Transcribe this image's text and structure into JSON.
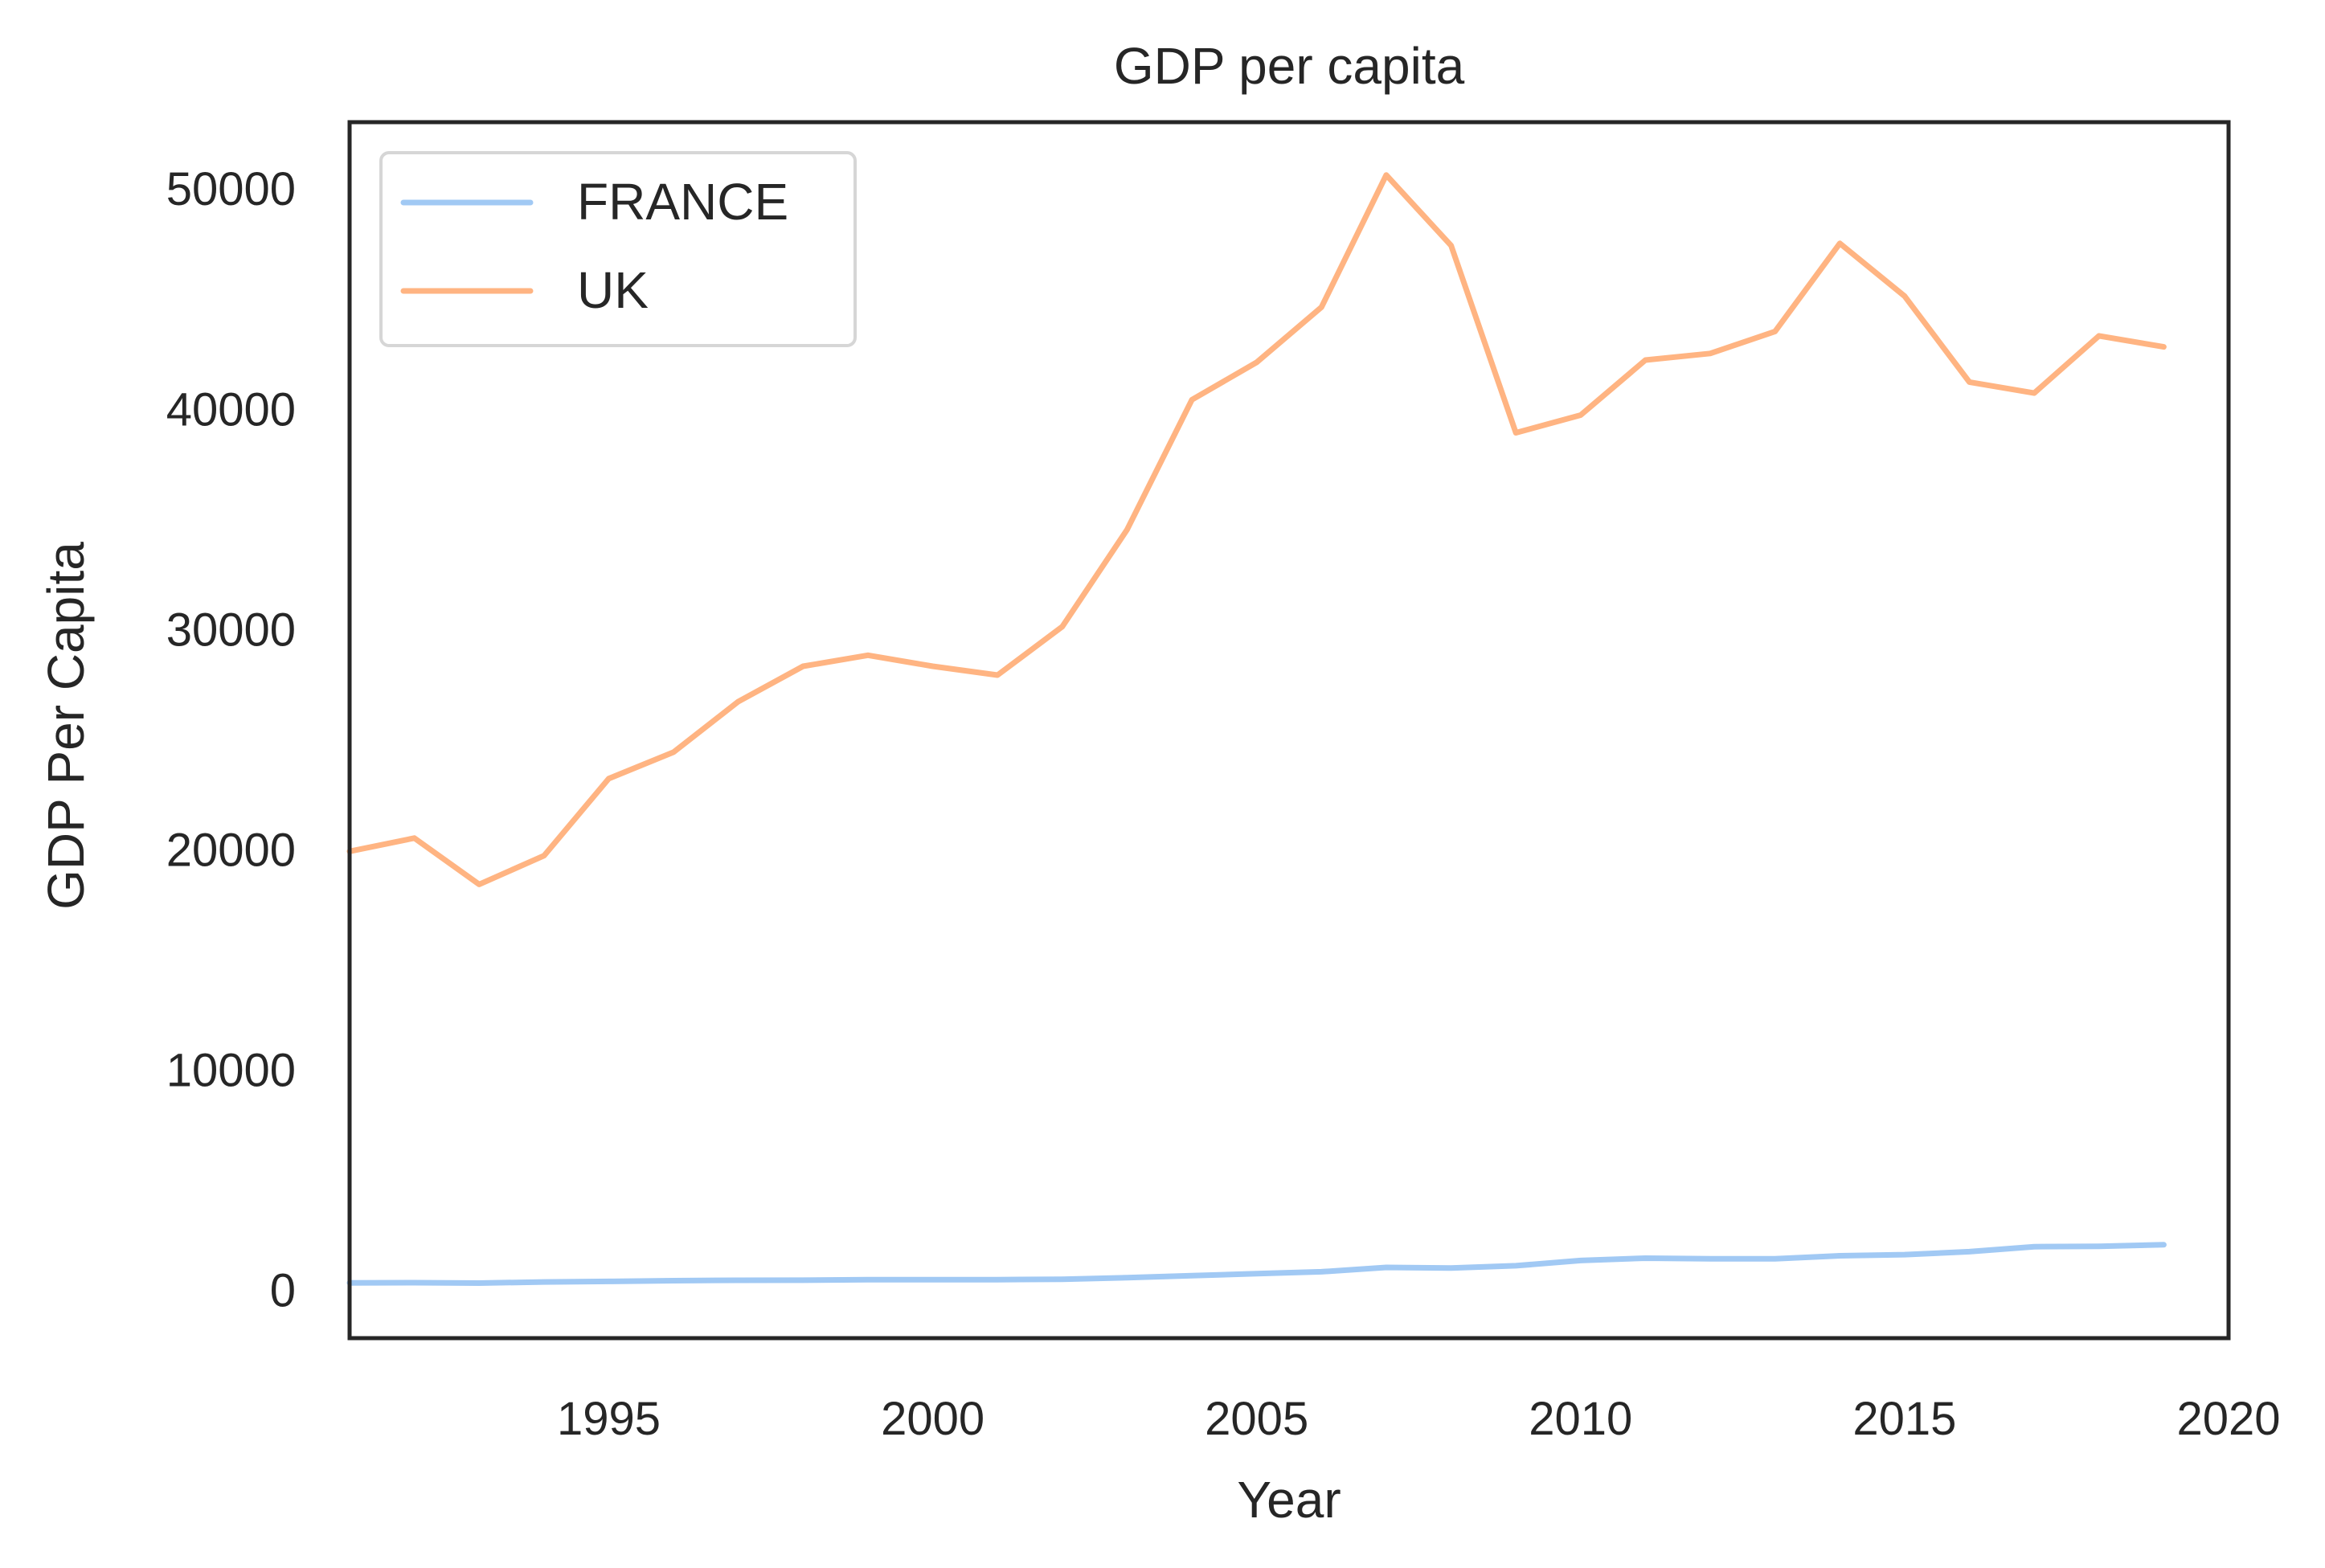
{
  "chart_data": {
    "type": "line",
    "title": "GDP per capita",
    "xlabel": "Year",
    "ylabel": "GDP Per Capita",
    "xlim": [
      1991,
      2020
    ],
    "ylim": [
      -2200,
      53000
    ],
    "grid": false,
    "legend_position": "top-left",
    "x_ticks": [
      1995,
      2000,
      2005,
      2010,
      2015,
      2020
    ],
    "y_ticks": [
      0,
      10000,
      20000,
      30000,
      40000,
      50000
    ],
    "x": [
      1991,
      1992,
      1993,
      1994,
      1995,
      1996,
      1997,
      1998,
      1999,
      2000,
      2001,
      2002,
      2003,
      2004,
      2005,
      2006,
      2007,
      2008,
      2009,
      2010,
      2011,
      2012,
      2013,
      2014,
      2015,
      2016,
      2017,
      2018,
      2019
    ],
    "series": [
      {
        "name": "FRANCE",
        "color": "#a1c9f4",
        "values": [
          309,
          317,
          299,
          349,
          374,
          409,
          426,
          430,
          451,
          454,
          456,
          469,
          544,
          640,
          726,
          815,
          1010,
          981,
          1086,
          1323,
          1431,
          1402,
          1406,
          1541,
          1589,
          1726,
          1953,
          1970,
          2041
        ]
      },
      {
        "name": "UK",
        "color": "#ffb482",
        "values": [
          19900,
          20500,
          18400,
          19700,
          23200,
          24400,
          26700,
          28300,
          28800,
          28300,
          27900,
          30100,
          34500,
          40400,
          42100,
          44600,
          50600,
          47400,
          38900,
          39700,
          42200,
          42500,
          43500,
          47500,
          45100,
          41200,
          40700,
          43300,
          42800
        ]
      }
    ]
  }
}
